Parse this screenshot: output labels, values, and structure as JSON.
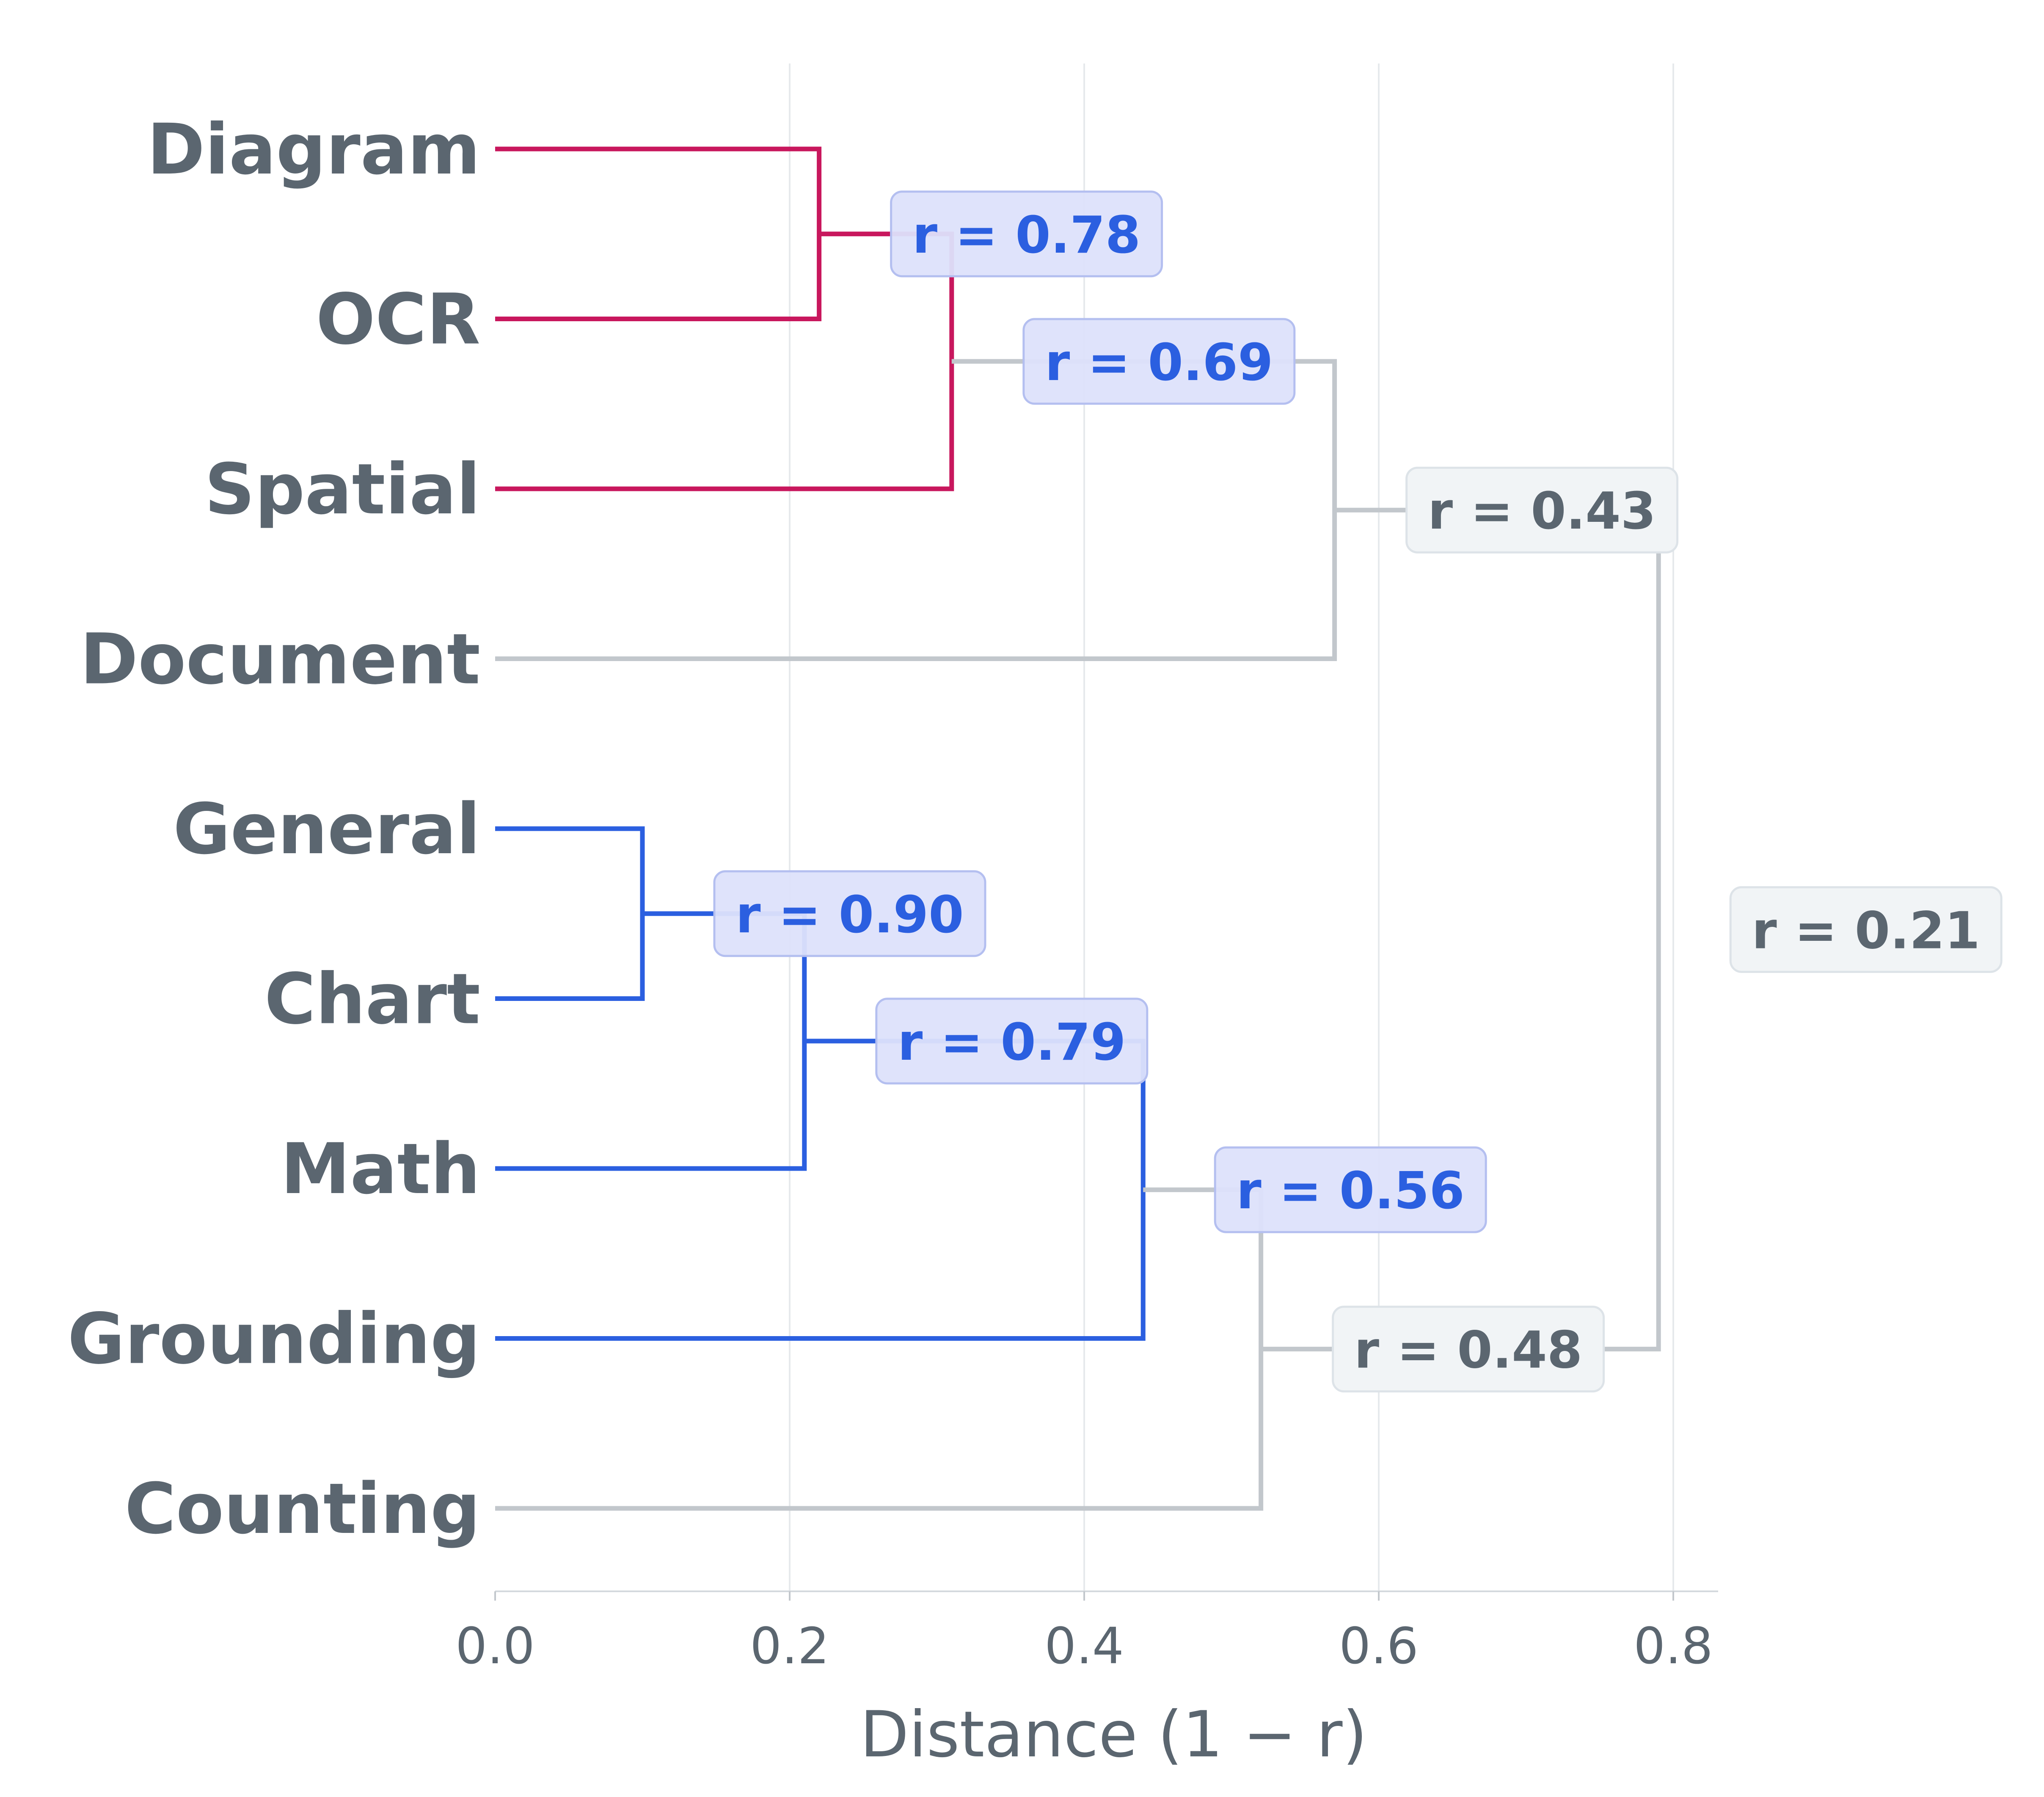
{
  "chart_data": {
    "type": "dendrogram",
    "orientation": "horizontal",
    "xlabel": "Distance (1 − r)",
    "xlim": [
      0.0,
      0.83
    ],
    "xticks": [
      0.0,
      0.2,
      0.4,
      0.6,
      0.8
    ],
    "xtick_labels": [
      "0.0",
      "0.2",
      "0.4",
      "0.6",
      "0.8"
    ],
    "grid": "vertical",
    "leaves": [
      "Diagram",
      "OCR",
      "Spatial",
      "Document",
      "General",
      "Chart",
      "Math",
      "Grounding",
      "Counting"
    ],
    "merges": [
      {
        "left": "Diagram",
        "right": "OCR",
        "distance": 0.22,
        "r_label": "r = 0.78",
        "color": "#c8175d",
        "label_style": "accent"
      },
      {
        "left": "Diagram+OCR",
        "right": "Spatial",
        "distance": 0.31,
        "r_label": "r = 0.69",
        "color": "#c8175d",
        "label_style": "accent"
      },
      {
        "left": "Diagram+OCR+Spatial",
        "right": "Document",
        "distance": 0.57,
        "r_label": "r = 0.43",
        "color": "#c2c7cc",
        "label_style": "neutral"
      },
      {
        "left": "General",
        "right": "Chart",
        "distance": 0.1,
        "r_label": "r = 0.90",
        "color": "#2b5fe0",
        "label_style": "accent"
      },
      {
        "left": "General+Chart",
        "right": "Math",
        "distance": 0.21,
        "r_label": "r = 0.79",
        "color": "#2b5fe0",
        "label_style": "accent"
      },
      {
        "left": "General+Chart+Math",
        "right": "Grounding",
        "distance": 0.44,
        "r_label": "r = 0.56",
        "color": "#2b5fe0",
        "label_style": "accent"
      },
      {
        "left": "General+Chart+Math+Grounding",
        "right": "Counting",
        "distance": 0.52,
        "r_label": "r = 0.48",
        "color": "#c2c7cc",
        "label_style": "neutral"
      },
      {
        "left": "Diagram+OCR+Spatial+Document",
        "right": "General+Chart+Math+Grounding+Counting",
        "distance": 0.79,
        "r_label": "r = 0.21",
        "color": "#c2c7cc",
        "label_style": "neutral"
      }
    ],
    "colors": {
      "cluster_pink": "#c8175d",
      "cluster_blue": "#2b5fe0",
      "link_gray": "#c2c7cc",
      "text_gray": "#5b6670",
      "accent_badge_fill": "#dde1fb",
      "accent_badge_border": "#b4bff0",
      "neutral_badge_fill": "#f1f4f6",
      "neutral_badge_border": "#dde3e8",
      "grid": "#e6e9ec"
    }
  }
}
